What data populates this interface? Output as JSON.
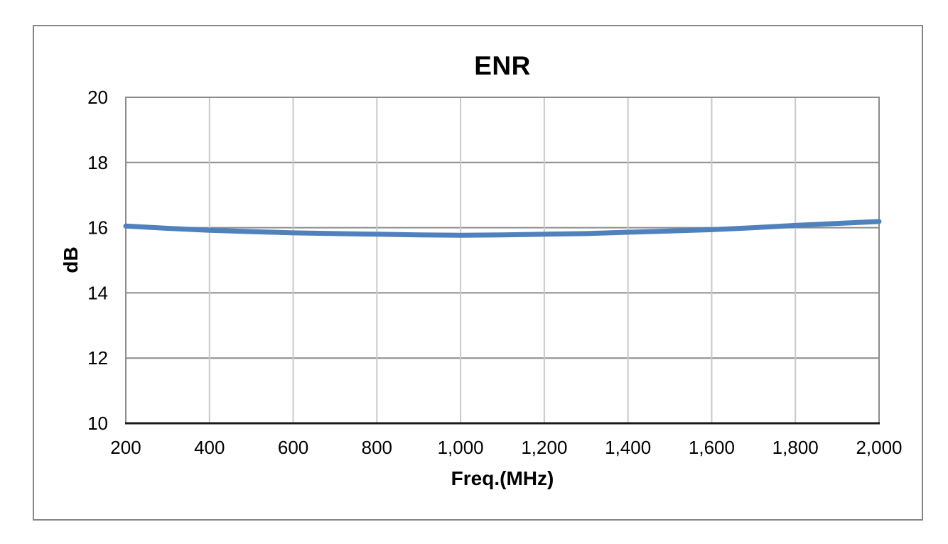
{
  "chart_data": {
    "type": "line",
    "title": "ENR",
    "xlabel": "Freq.(MHz)",
    "ylabel": "dB",
    "xlim": [
      200,
      2000
    ],
    "ylim": [
      10,
      20
    ],
    "grid": true,
    "legend": false,
    "x_ticks": [
      200,
      400,
      600,
      800,
      1000,
      1200,
      1400,
      1600,
      1800,
      2000
    ],
    "x_tick_labels": [
      "200",
      "400",
      "600",
      "800",
      "1,000",
      "1,200",
      "1,400",
      "1,600",
      "1,800",
      "2,000"
    ],
    "y_ticks": [
      10,
      12,
      14,
      16,
      18,
      20
    ],
    "y_tick_labels": [
      "10",
      "12",
      "14",
      "16",
      "18",
      "20"
    ],
    "series": [
      {
        "name": "ENR",
        "color": "#4F81BD",
        "x": [
          200,
          300,
          400,
          500,
          600,
          700,
          800,
          900,
          1000,
          1100,
          1200,
          1300,
          1400,
          1500,
          1600,
          1700,
          1800,
          1900,
          2000
        ],
        "values": [
          16.05,
          15.98,
          15.92,
          15.88,
          15.84,
          15.82,
          15.8,
          15.78,
          15.77,
          15.78,
          15.8,
          15.82,
          15.86,
          15.9,
          15.94,
          16.0,
          16.07,
          16.13,
          16.19
        ]
      }
    ],
    "colors": {
      "series": "#4F81BD",
      "h_grid": "#8C8C8C",
      "v_grid": "#C9C9C9",
      "plot_border": "#8C8C8C",
      "x_axis": "#1A1A1A",
      "outer_frame": "#868686",
      "text": "#000000",
      "background": "#FFFFFF"
    }
  }
}
